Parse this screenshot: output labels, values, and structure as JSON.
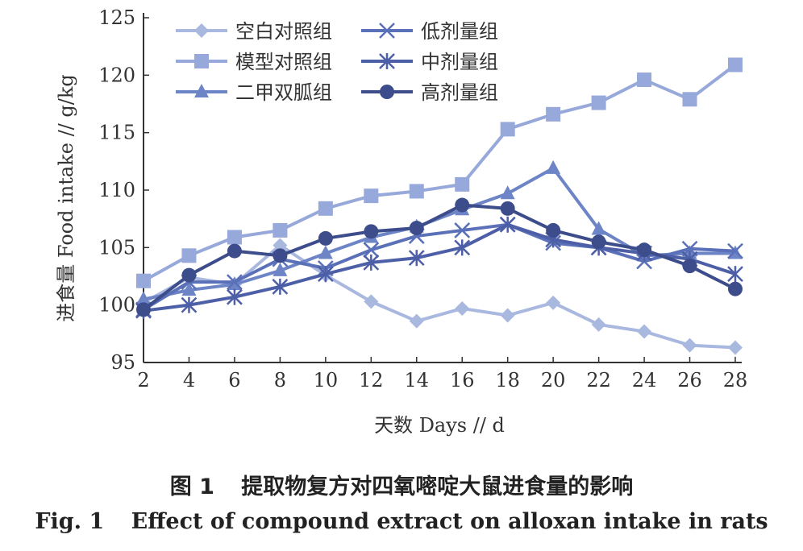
{
  "chart_data": {
    "type": "line",
    "x": [
      2,
      4,
      6,
      8,
      10,
      12,
      14,
      16,
      18,
      20,
      22,
      24,
      26,
      28
    ],
    "xlabel": "天数 Days // d",
    "ylabel": "进食量 Food intake // g/kg",
    "xlim": [
      2,
      28
    ],
    "ylim": [
      95,
      125
    ],
    "yticks": [
      95,
      100,
      105,
      110,
      115,
      120,
      125
    ],
    "grid": false,
    "legend_position": "top-left",
    "series": [
      {
        "name": "空白对照组",
        "marker": "diamond",
        "color": "#a9b8df",
        "values": [
          100.2,
          102.4,
          101.8,
          105.2,
          102.6,
          100.3,
          98.6,
          99.7,
          99.1,
          100.2,
          98.3,
          97.7,
          96.5,
          96.3
        ]
      },
      {
        "name": "模型对照组",
        "marker": "square",
        "color": "#97a8da",
        "values": [
          102.1,
          104.3,
          105.9,
          106.5,
          108.4,
          109.5,
          109.9,
          110.5,
          115.3,
          116.6,
          117.6,
          119.6,
          117.9,
          120.9
        ]
      },
      {
        "name": "二甲双胍组",
        "marker": "triangle",
        "color": "#6d84c6",
        "values": [
          100.5,
          101.3,
          101.8,
          103.0,
          104.5,
          105.9,
          106.8,
          108.3,
          109.7,
          111.9,
          106.6,
          104.3,
          104.5,
          104.5
        ]
      },
      {
        "name": "低剂量组",
        "marker": "x",
        "color": "#5a70b8",
        "values": [
          99.6,
          102.0,
          102.0,
          104.0,
          103.2,
          104.8,
          106.0,
          106.5,
          107.0,
          105.4,
          105.0,
          103.8,
          104.9,
          104.7
        ]
      },
      {
        "name": "中剂量组",
        "marker": "asterisk",
        "color": "#4d5fa7",
        "values": [
          99.5,
          100.0,
          100.7,
          101.6,
          102.7,
          103.7,
          104.1,
          105.0,
          107.0,
          105.7,
          105.0,
          104.5,
          104.0,
          102.7
        ]
      },
      {
        "name": "高剂量组",
        "marker": "circle",
        "color": "#3d4c8a",
        "values": [
          99.6,
          102.6,
          104.7,
          104.3,
          105.8,
          106.4,
          106.7,
          108.7,
          108.4,
          106.5,
          105.5,
          104.8,
          103.4,
          101.4
        ]
      }
    ]
  },
  "caption": {
    "cn_label": "图 1",
    "cn_text": "提取物复方对四氧嘧啶大鼠进食量的影响",
    "en_label": "Fig. 1",
    "en_text": "Effect of compound extract on alloxan intake in rats"
  }
}
